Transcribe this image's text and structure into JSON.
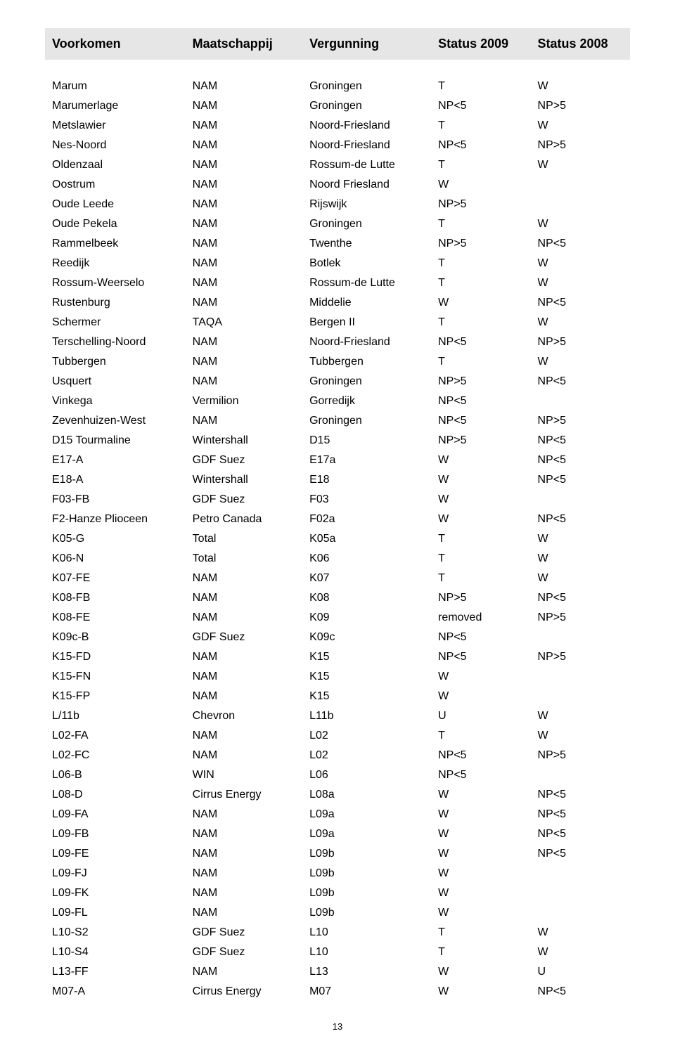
{
  "table": {
    "headers": [
      "Voorkomen",
      "Maatschappij",
      "Vergunning",
      "Status 2009",
      "Status 2008"
    ],
    "header_bg": "#e6e6e6",
    "rows": [
      [
        "Marum",
        "NAM",
        "Groningen",
        "T",
        "W"
      ],
      [
        "Marumerlage",
        "NAM",
        "Groningen",
        "NP<5",
        "NP>5"
      ],
      [
        "Metslawier",
        "NAM",
        "Noord-Friesland",
        "T",
        "W"
      ],
      [
        "Nes-Noord",
        "NAM",
        "Noord-Friesland",
        "NP<5",
        "NP>5"
      ],
      [
        "Oldenzaal",
        "NAM",
        "Rossum-de Lutte",
        "T",
        "W"
      ],
      [
        "Oostrum",
        "NAM",
        "Noord Friesland",
        "W",
        ""
      ],
      [
        "Oude Leede",
        "NAM",
        "Rijswijk",
        "NP>5",
        ""
      ],
      [
        "Oude Pekela",
        "NAM",
        "Groningen",
        "T",
        "W"
      ],
      [
        "Rammelbeek",
        "NAM",
        "Twenthe",
        "NP>5",
        "NP<5"
      ],
      [
        "Reedijk",
        "NAM",
        "Botlek",
        "T",
        "W"
      ],
      [
        "Rossum-Weerselo",
        "NAM",
        "Rossum-de Lutte",
        "T",
        "W"
      ],
      [
        "Rustenburg",
        "NAM",
        "Middelie",
        "W",
        "NP<5"
      ],
      [
        "Schermer",
        "TAQA",
        "Bergen II",
        "T",
        "W"
      ],
      [
        "Terschelling-Noord",
        "NAM",
        "Noord-Friesland",
        "NP<5",
        "NP>5"
      ],
      [
        "Tubbergen",
        "NAM",
        "Tubbergen",
        "T",
        "W"
      ],
      [
        "Usquert",
        "NAM",
        "Groningen",
        "NP>5",
        "NP<5"
      ],
      [
        "Vinkega",
        "Vermilion",
        "Gorredijk",
        "NP<5",
        ""
      ],
      [
        "Zevenhuizen-West",
        "NAM",
        "Groningen",
        "NP<5",
        "NP>5"
      ],
      [
        "D15 Tourmaline",
        "Wintershall",
        "D15",
        "NP>5",
        "NP<5"
      ],
      [
        "E17-A",
        "GDF Suez",
        "E17a",
        "W",
        "NP<5"
      ],
      [
        "E18-A",
        "Wintershall",
        "E18",
        "W",
        "NP<5"
      ],
      [
        "F03-FB",
        "GDF Suez",
        "F03",
        "W",
        ""
      ],
      [
        "F2-Hanze Plioceen",
        "Petro Canada",
        "F02a",
        "W",
        "NP<5"
      ],
      [
        "K05-G",
        "Total",
        "K05a",
        "T",
        "W"
      ],
      [
        "K06-N",
        "Total",
        "K06",
        "T",
        "W"
      ],
      [
        "K07-FE",
        "NAM",
        "K07",
        "T",
        "W"
      ],
      [
        "K08-FB",
        "NAM",
        "K08",
        "NP>5",
        "NP<5"
      ],
      [
        "K08-FE",
        "NAM",
        "K09",
        "removed",
        "NP>5"
      ],
      [
        "K09c-B",
        "GDF Suez",
        "K09c",
        "NP<5",
        ""
      ],
      [
        "K15-FD",
        "NAM",
        "K15",
        "NP<5",
        "NP>5"
      ],
      [
        "K15-FN",
        "NAM",
        "K15",
        "W",
        ""
      ],
      [
        "K15-FP",
        "NAM",
        "K15",
        "W",
        ""
      ],
      [
        "L/11b",
        "Chevron",
        "L11b",
        "U",
        "W"
      ],
      [
        "L02-FA",
        "NAM",
        "L02",
        "T",
        "W"
      ],
      [
        "L02-FC",
        "NAM",
        "L02",
        "NP<5",
        "NP>5"
      ],
      [
        "L06-B",
        "WIN",
        "L06",
        "NP<5",
        ""
      ],
      [
        "L08-D",
        "Cirrus Energy",
        "L08a",
        "W",
        "NP<5"
      ],
      [
        "L09-FA",
        "NAM",
        "L09a",
        "W",
        "NP<5"
      ],
      [
        "L09-FB",
        "NAM",
        "L09a",
        "W",
        "NP<5"
      ],
      [
        "L09-FE",
        "NAM",
        "L09b",
        "W",
        "NP<5"
      ],
      [
        "L09-FJ",
        "NAM",
        "L09b",
        "W",
        ""
      ],
      [
        "L09-FK",
        "NAM",
        "L09b",
        "W",
        ""
      ],
      [
        "L09-FL",
        "NAM",
        "L09b",
        "W",
        ""
      ],
      [
        "L10-S2",
        "GDF Suez",
        "L10",
        "T",
        "W"
      ],
      [
        "L10-S4",
        "GDF Suez",
        "L10",
        "T",
        "W"
      ],
      [
        "L13-FF",
        "NAM",
        "L13",
        "W",
        "U"
      ],
      [
        "M07-A",
        "Cirrus Energy",
        "M07",
        "W",
        "NP<5"
      ]
    ]
  },
  "page_number": "13",
  "colors": {
    "background": "#ffffff",
    "text": "#000000",
    "header_bg": "#e6e6e6"
  },
  "font": {
    "family": "Arial",
    "header_size": 18,
    "cell_size": 16
  }
}
